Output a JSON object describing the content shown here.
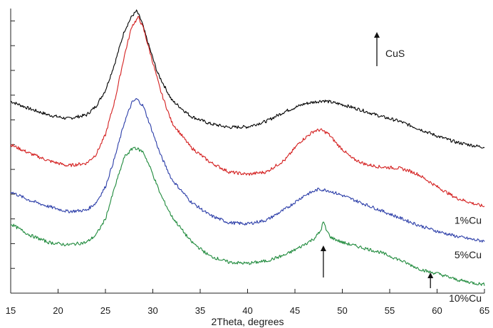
{
  "chart_data": {
    "type": "line",
    "title": "",
    "xlabel": "2Theta, degrees",
    "ylabel": "",
    "xlim": [
      15,
      65
    ],
    "ylim": [
      0,
      11.5
    ],
    "x_ticks": [
      "15",
      "20",
      "25",
      "30",
      "35",
      "40",
      "45",
      "50",
      "55",
      "60",
      "65"
    ],
    "y_tick_labels_shown": false,
    "grid": false,
    "legend_position": "top-right",
    "legend": {
      "label": "CuS",
      "symbol": "up-arrow"
    },
    "series": [
      {
        "name": "",
        "color": "#000000",
        "x": [
          15,
          17,
          19,
          21,
          23,
          24,
          25,
          26,
          27,
          27.8,
          28.3,
          28.8,
          29.5,
          30.5,
          32,
          34,
          36,
          38,
          40,
          42,
          44,
          46,
          47,
          48,
          49,
          50,
          52,
          54,
          56,
          58,
          60,
          62,
          64,
          65
        ],
        "y": [
          7.75,
          7.45,
          7.2,
          7.05,
          7.2,
          7.55,
          8.2,
          9.3,
          10.6,
          11.2,
          11.4,
          11.0,
          10.1,
          8.9,
          7.8,
          7.15,
          6.85,
          6.7,
          6.72,
          6.95,
          7.35,
          7.65,
          7.72,
          7.78,
          7.7,
          7.62,
          7.4,
          7.15,
          6.95,
          6.65,
          6.35,
          6.1,
          5.95,
          5.9
        ]
      },
      {
        "name": "1%Cu",
        "color": "#d42020",
        "x": [
          15,
          17,
          19,
          21,
          23,
          24,
          25,
          26,
          27,
          27.8,
          28.5,
          29,
          29.8,
          30.8,
          32,
          34,
          36,
          38,
          40,
          42,
          44,
          45.5,
          47,
          47.7,
          48.5,
          49.5,
          51,
          52.5,
          54,
          56,
          57,
          58,
          60,
          62,
          64,
          65
        ],
        "y": [
          6.0,
          5.65,
          5.35,
          5.15,
          5.25,
          5.6,
          6.4,
          7.8,
          9.6,
          10.8,
          11.15,
          10.7,
          9.6,
          8.2,
          6.9,
          5.9,
          5.3,
          4.9,
          4.8,
          4.9,
          5.4,
          6.1,
          6.55,
          6.6,
          6.45,
          6.0,
          5.45,
          5.2,
          5.1,
          5.05,
          4.95,
          4.8,
          4.3,
          3.85,
          3.6,
          3.5
        ]
      },
      {
        "name": "5%Cu",
        "color": "#2b3da8",
        "x": [
          15,
          17,
          19,
          21,
          23,
          24,
          25,
          26,
          27,
          27.8,
          28.3,
          29,
          29.8,
          30.8,
          32,
          34,
          36,
          38,
          40,
          42,
          44,
          46,
          47.5,
          48.5,
          50,
          52,
          54,
          56,
          58,
          60,
          62,
          64,
          65
        ],
        "y": [
          4.1,
          3.75,
          3.5,
          3.3,
          3.35,
          3.65,
          4.3,
          5.5,
          6.9,
          7.7,
          7.85,
          7.55,
          6.7,
          5.6,
          4.6,
          3.7,
          3.15,
          2.85,
          2.8,
          2.95,
          3.4,
          3.95,
          4.2,
          4.15,
          3.95,
          3.65,
          3.35,
          3.05,
          2.75,
          2.5,
          2.3,
          2.15,
          2.1
        ]
      },
      {
        "name": "10%Cu",
        "color": "#1f8a3c",
        "x": [
          15,
          17,
          19,
          21,
          23,
          24,
          25,
          26,
          27,
          28,
          29,
          29.8,
          30.8,
          32,
          34,
          36,
          38,
          40,
          42,
          44,
          45.5,
          47,
          47.7,
          48,
          48.3,
          48.8,
          50,
          52,
          54,
          56,
          58,
          59.2,
          60,
          62,
          64,
          65
        ],
        "y": [
          2.8,
          2.35,
          2.05,
          1.95,
          2.05,
          2.35,
          3.0,
          4.3,
          5.5,
          5.9,
          5.7,
          5.0,
          4.0,
          3.1,
          2.1,
          1.5,
          1.25,
          1.2,
          1.3,
          1.55,
          1.85,
          2.2,
          2.5,
          2.9,
          2.55,
          2.25,
          2.05,
          1.85,
          1.65,
          1.35,
          1.0,
          0.85,
          0.8,
          0.55,
          0.4,
          0.35
        ]
      }
    ],
    "annotations": [
      {
        "type": "arrow",
        "x": 48,
        "label": ""
      },
      {
        "type": "arrow",
        "x": 59.3,
        "label": ""
      }
    ]
  }
}
